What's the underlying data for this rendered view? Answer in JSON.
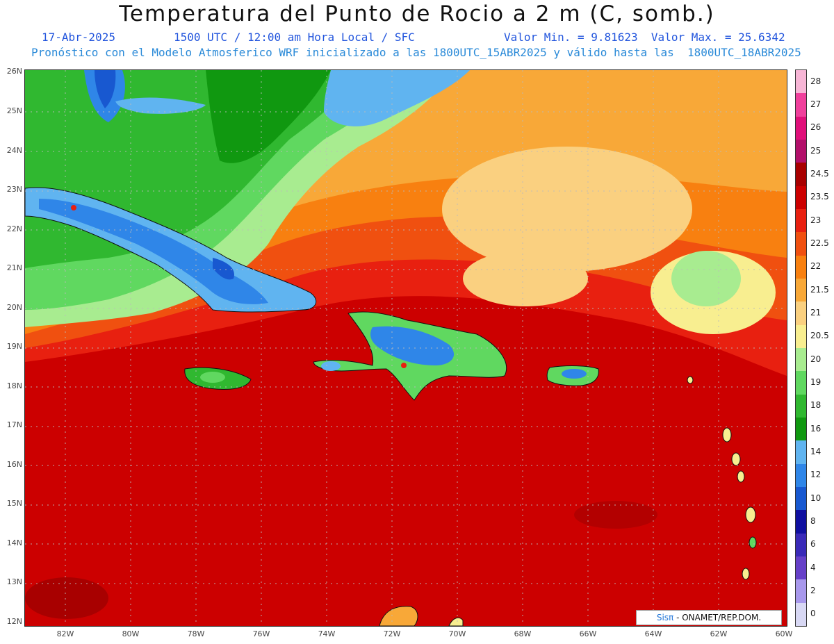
{
  "header": {
    "title": "Temperatura del Punto de Rocio a 2 m (C, somb.)",
    "date": "17-Abr-2025",
    "time": "1500 UTC / 12:00 am Hora Local / SFC",
    "min_max": "Valor Min. = 9.81623  Valor Max. = 25.6342",
    "model_info": "Pronóstico con el Modelo Atmosferico WRF inicializado a las 1800UTC_15ABR2025 y válido hasta las  1800UTC_18ABR2025"
  },
  "axes": {
    "lat_labels": [
      "26N",
      "25N",
      "24N",
      "23N",
      "22N",
      "21N",
      "20N",
      "19N",
      "18N",
      "17N",
      "16N",
      "15N",
      "14N",
      "13N",
      "12N"
    ],
    "lon_labels": [
      "82W",
      "80W",
      "78W",
      "76W",
      "74W",
      "72W",
      "70W",
      "68W",
      "66W",
      "64W",
      "62W",
      "60W"
    ]
  },
  "legend": {
    "levels": [
      "28",
      "27",
      "26",
      "25",
      "24.5",
      "23.5",
      "23",
      "22.5",
      "22",
      "21.5",
      "21",
      "20.5",
      "20",
      "19",
      "18",
      "16",
      "14",
      "12",
      "10",
      "8",
      "6",
      "4",
      "2",
      "0"
    ],
    "colors": [
      "#f7b6d6",
      "#f0409c",
      "#e0107a",
      "#b2106a",
      "#a80000",
      "#cc0000",
      "#e82010",
      "#f05010",
      "#f88010",
      "#f8a838",
      "#fad080",
      "#f8ee90",
      "#a8ec90",
      "#60d860",
      "#30b830",
      "#109810",
      "#60b4f0",
      "#2f86e8",
      "#1858d0",
      "#1010a0",
      "#3a2ab8",
      "#6640c8",
      "#a898ec",
      "#d8d8f4"
    ]
  },
  "credit": {
    "sis": "Sisπ",
    "rest": " - ONAMET/REP.DOM."
  }
}
